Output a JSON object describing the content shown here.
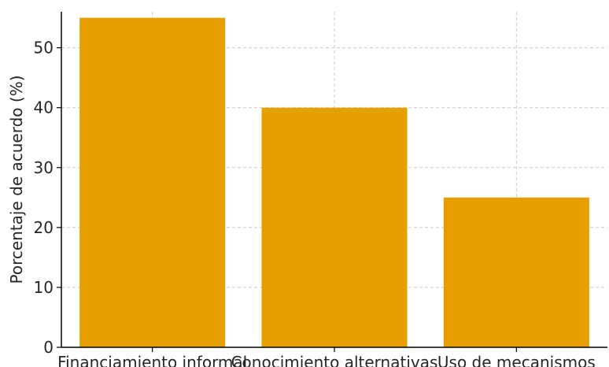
{
  "chart_data": {
    "type": "bar",
    "title": "",
    "xlabel": "",
    "ylabel": "Porcentaje de acuerdo (%)",
    "categories": [
      "Financiamiento informal",
      "Conocimiento alternativas",
      "Uso de mecanismos"
    ],
    "values": [
      55,
      40,
      25
    ],
    "ylim": [
      0,
      56
    ],
    "yticks": [
      0,
      10,
      20,
      30,
      40,
      50
    ],
    "grid": true,
    "grid_style": "dashed",
    "legend": "none",
    "colors": {
      "bar": "#E69F00",
      "grid": "#cccccc",
      "axis": "#000000"
    }
  }
}
